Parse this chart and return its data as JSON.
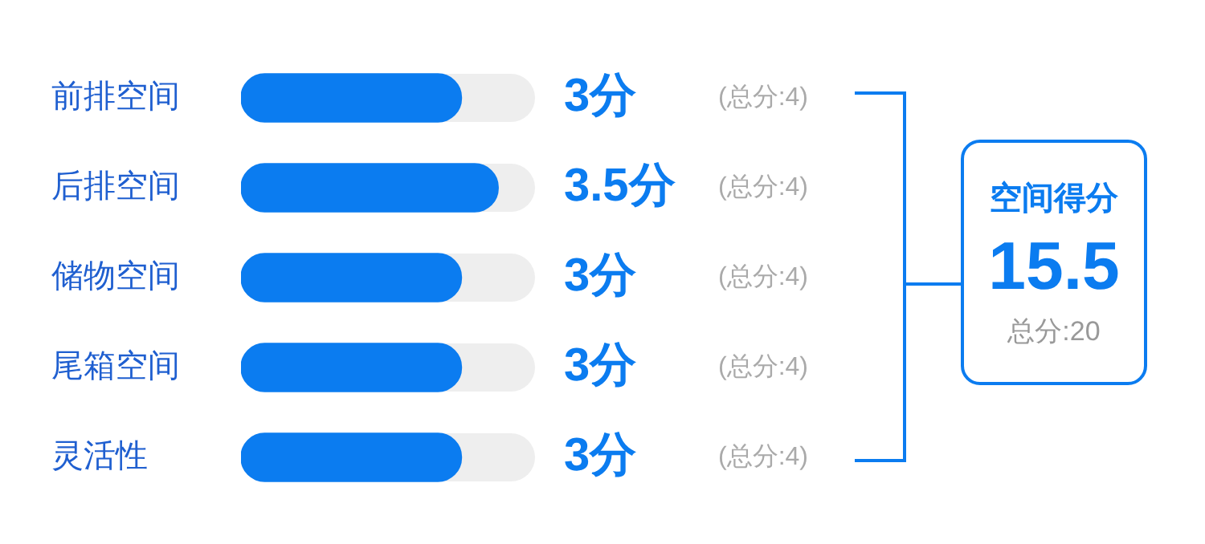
{
  "chart_data": {
    "type": "bar",
    "orientation": "horizontal",
    "categories": [
      "前排空间",
      "后排空间",
      "储物空间",
      "尾箱空间",
      "灵活性"
    ],
    "values": [
      3,
      3.5,
      3,
      3,
      3
    ],
    "color": "#0b7cf0",
    "xlim": [
      0,
      4
    ],
    "tick_labels": "y",
    "value_labels": [
      "3分",
      "3.5分",
      "3分",
      "3分",
      "3分"
    ],
    "annotations": [
      "(总分:4)",
      "(总分:4)",
      "(总分:4)",
      "(总分:4)",
      "(总分:4)",
      "空间得分",
      "15.5",
      "总分:20"
    ]
  }
}
